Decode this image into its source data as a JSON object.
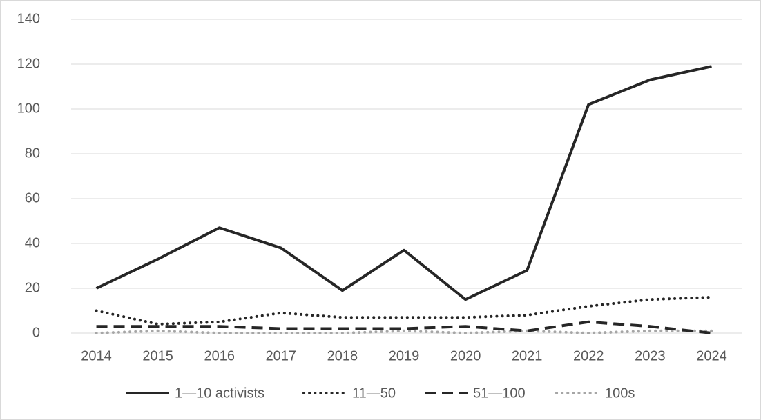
{
  "chart_data": {
    "type": "line",
    "categories": [
      "2014",
      "2015",
      "2016",
      "2017",
      "2018",
      "2019",
      "2020",
      "2021",
      "2022",
      "2023",
      "2024"
    ],
    "series": [
      {
        "name": "1—10 activists",
        "color": "#262626",
        "dash": "solid",
        "values": [
          20,
          33,
          47,
          38,
          19,
          37,
          15,
          28,
          102,
          113,
          119
        ]
      },
      {
        "name": "11—50",
        "color": "#262626",
        "dash": "dotted",
        "values": [
          10,
          4,
          5,
          9,
          7,
          7,
          7,
          8,
          12,
          15,
          16
        ]
      },
      {
        "name": "51—100",
        "color": "#262626",
        "dash": "dashed",
        "values": [
          3,
          3,
          3,
          2,
          2,
          2,
          3,
          1,
          5,
          3,
          0
        ]
      },
      {
        "name": "100s",
        "color": "#a6a6a6",
        "dash": "dotted",
        "values": [
          0,
          1,
          0,
          0,
          0,
          1,
          0,
          1,
          0,
          1,
          1
        ]
      }
    ],
    "ylim": [
      0,
      140
    ],
    "yticks": [
      0,
      20,
      40,
      60,
      80,
      100,
      120,
      140
    ],
    "grid": true,
    "legend": "bottom"
  }
}
